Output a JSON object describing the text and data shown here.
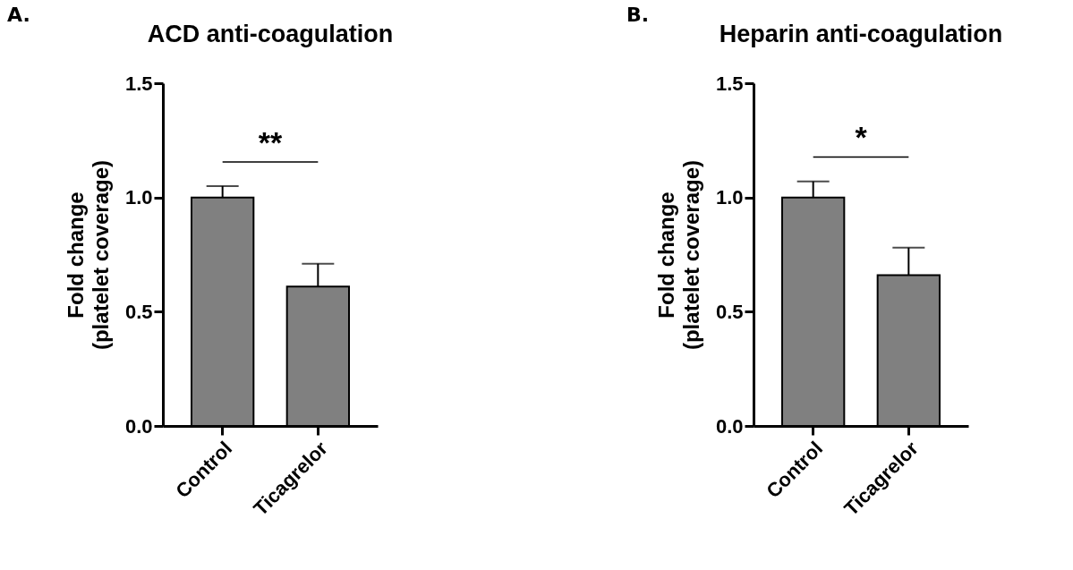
{
  "chart_data": [
    {
      "type": "bar",
      "title": "ACD anti-coagulation",
      "ylabel": "Fold change\n(platelet coverage)",
      "categories": [
        "Control",
        "Ticagrelor"
      ],
      "values": [
        1.0,
        0.61
      ],
      "errors": [
        [
          1.0,
          1.05
        ],
        [
          0.61,
          0.71
        ]
      ],
      "color": "#808080",
      "ylim": [
        0,
        1.5
      ],
      "yticks": [
        {
          "value": 0,
          "label": "0.0"
        },
        {
          "value": 0.5,
          "label": "0.5"
        },
        {
          "value": 1,
          "label": "1.0"
        },
        {
          "value": 1.5,
          "label": "1.5"
        }
      ],
      "grid": false,
      "annotations": [
        "A.",
        "**"
      ]
    },
    {
      "type": "bar",
      "title": "Heparin anti-coagulation",
      "ylabel": "Fold change\n(platelet coverage)",
      "categories": [
        "Control",
        "Ticagrelor"
      ],
      "values": [
        1.0,
        0.66
      ],
      "errors": [
        [
          1.0,
          1.07
        ],
        [
          0.66,
          0.78
        ]
      ],
      "color": "#808080",
      "ylim": [
        0,
        1.5
      ],
      "yticks": [
        {
          "value": 0,
          "label": "0.0"
        },
        {
          "value": 0.5,
          "label": "0.5"
        },
        {
          "value": 1,
          "label": "1.0"
        },
        {
          "value": 1.5,
          "label": "1.5"
        }
      ],
      "grid": false,
      "annotations": [
        "B.",
        "*"
      ]
    }
  ]
}
